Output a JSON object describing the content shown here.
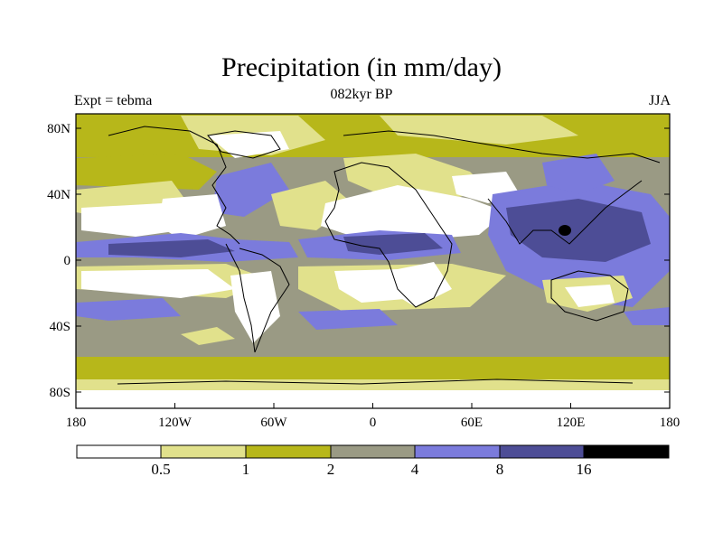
{
  "title": "Precipitation (in mm/day)",
  "subtitle": "082kyr BP",
  "left_label": "Expt = tebma",
  "right_label": "JJA",
  "y_ticks": [
    "80N",
    "40N",
    "0",
    "40S",
    "80S"
  ],
  "x_ticks": [
    "180",
    "120W",
    "60W",
    "0",
    "60E",
    "120E",
    "180"
  ],
  "colorbar": {
    "labels": [
      "0.5",
      "1",
      "2",
      "4",
      "8",
      "16"
    ],
    "colors": [
      "#ffffff",
      "#e1e18c",
      "#b7b71a",
      "#9a9a84",
      "#7b7bdc",
      "#4d4d96",
      "#000000"
    ]
  },
  "chart_data": {
    "type": "heatmap",
    "title": "Precipitation (in mm/day)",
    "subtitle": "082kyr BP",
    "xlim": [
      -180,
      180
    ],
    "ylim": [
      -90,
      90
    ],
    "contour_levels": [
      0.5,
      1,
      2,
      4,
      8,
      16
    ]
  }
}
